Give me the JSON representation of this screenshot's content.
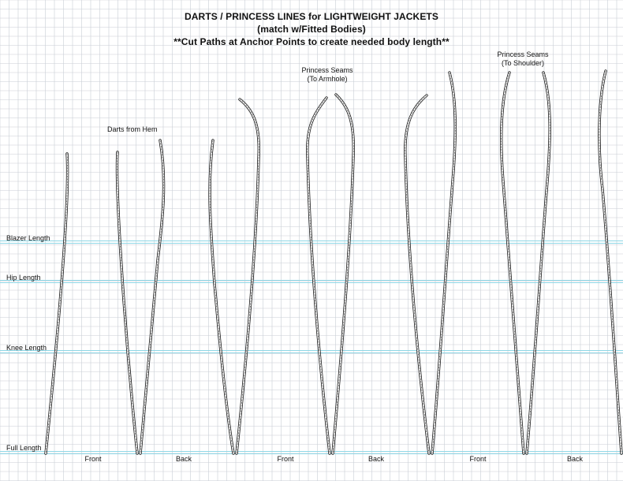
{
  "header": {
    "title": "DARTS / PRINCESS LINES for LIGHTWEIGHT JACKETS",
    "subtitle": "(match w/Fitted Bodies)",
    "note": "**Cut Paths at Anchor Points to create needed body length**"
  },
  "groups": {
    "darts_label": "Darts from Hem",
    "princess_armhole_label_1": "Princess Seams",
    "princess_armhole_label_2": "(To Armhole)",
    "princess_shoulder_label_1": "Princess Seams",
    "princess_shoulder_label_2": "(To Shoulder)"
  },
  "reference_lines": [
    {
      "label": "Blazer Length"
    },
    {
      "label": "Hip Length"
    },
    {
      "label": "Knee Length"
    },
    {
      "label": "Full Length"
    }
  ],
  "footer_labels": [
    "Front",
    "Back",
    "Front",
    "Back",
    "Front",
    "Back"
  ],
  "colors": {
    "grid": "#c9ced6",
    "guide": "#8fd7e6",
    "line": "#1a1a1a",
    "dash": "#555555"
  }
}
